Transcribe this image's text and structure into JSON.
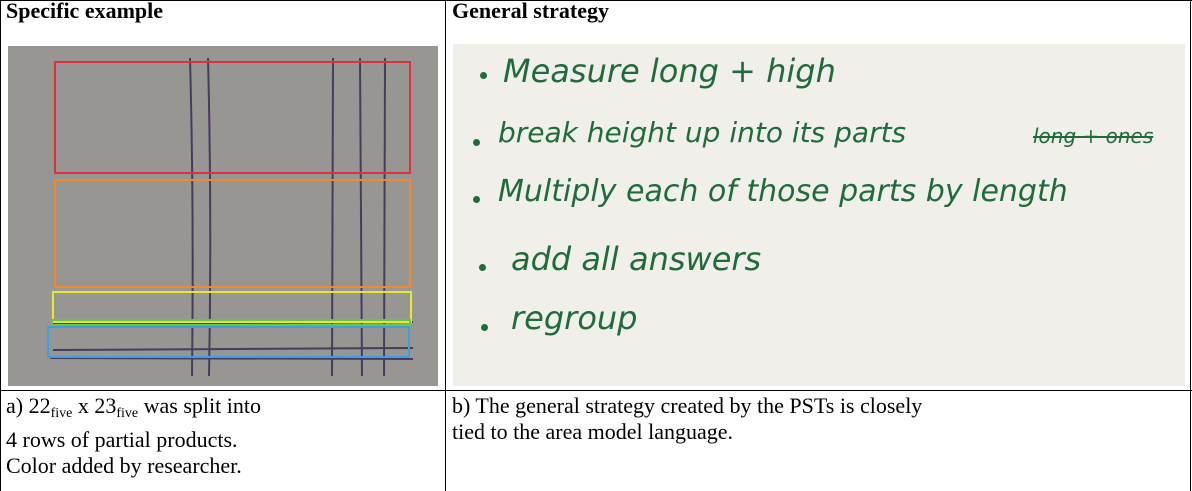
{
  "table": {
    "headers": [
      "Specific example",
      "General strategy"
    ],
    "notes": [
      "Measure long + high",
      "break height up into its parts",
      "long + ones",
      "Multiply each of those parts by length",
      "add all answers",
      "regroup"
    ],
    "caption_a": {
      "prefix": "a) ",
      "n1": "22",
      "sub1": "five",
      "mid": " x ",
      "n2": "23",
      "sub2": "five",
      "rest": " was split into",
      "line2": "4 rows of partial products.",
      "line3": "Color added by researcher."
    },
    "caption_b": [
      "b) The general strategy created by the PSTs is closely",
      "tied to the area model language."
    ]
  }
}
